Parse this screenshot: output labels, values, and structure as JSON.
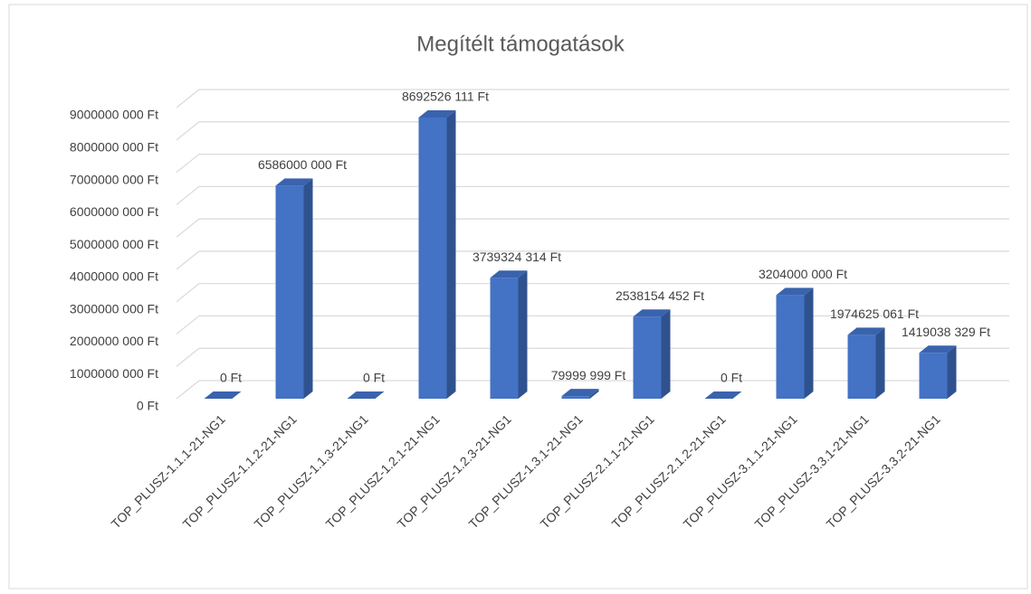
{
  "chart_data": {
    "type": "bar3d",
    "title": "Megítélt támogatások",
    "categories": [
      "TOP_PLUSZ-1.1.1-21-NG1",
      "TOP_PLUSZ-1.1.2-21-NG1",
      "TOP_PLUSZ-1.1.3-21-NG1",
      "TOP_PLUSZ-1.2.1-21-NG1",
      "TOP_PLUSZ-1.2.3-21-NG1",
      "TOP_PLUSZ-1.3.1-21-NG1",
      "TOP_PLUSZ-2.1.1-21-NG1",
      "TOP_PLUSZ-2.1.2-21-NG1",
      "TOP_PLUSZ-3.1.1-21-NG1",
      "TOP_PLUSZ-3.3.1-21-NG1",
      "TOP_PLUSZ-3.3.2-21-NG1"
    ],
    "values": [
      0,
      6586000000,
      0,
      8692526111,
      3739324314,
      79999999,
      2538154452,
      0,
      3204000000,
      1974625061,
      1419038329
    ],
    "value_labels": [
      "0 Ft",
      "6586000 000 Ft",
      "0 Ft",
      "8692526 111 Ft",
      "3739324 314 Ft",
      "79999 999 Ft",
      "2538154 452 Ft",
      "0 Ft",
      "3204000 000 Ft",
      "1974625 061 Ft",
      "1419038 329 Ft"
    ],
    "color": "#4472c4",
    "ylim": [
      0,
      9000000000
    ],
    "yticks": [
      {
        "value": 0,
        "label": "0 Ft"
      },
      {
        "value": 1000000000,
        "label": "1000000 000 Ft"
      },
      {
        "value": 2000000000,
        "label": "2000000 000 Ft"
      },
      {
        "value": 3000000000,
        "label": "3000000 000 Ft"
      },
      {
        "value": 4000000000,
        "label": "4000000 000 Ft"
      },
      {
        "value": 5000000000,
        "label": "5000000 000 Ft"
      },
      {
        "value": 6000000000,
        "label": "6000000 000 Ft"
      },
      {
        "value": 7000000000,
        "label": "7000000 000 Ft"
      },
      {
        "value": 8000000000,
        "label": "8000000 000 Ft"
      },
      {
        "value": 9000000000,
        "label": "9000000 000 Ft"
      }
    ],
    "grid": true
  }
}
